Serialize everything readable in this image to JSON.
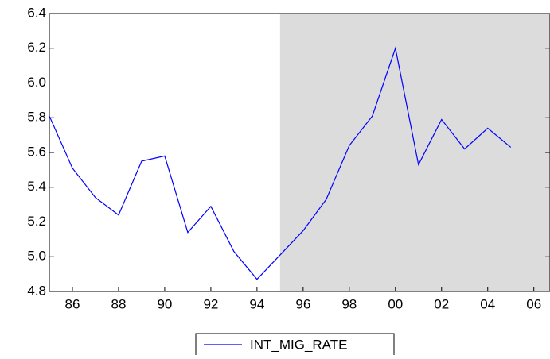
{
  "chart_data": {
    "type": "line",
    "x": [
      1985,
      1986,
      1987,
      1988,
      1989,
      1990,
      1991,
      1992,
      1993,
      1994,
      1995,
      1996,
      1997,
      1998,
      1999,
      2000,
      2001,
      2002,
      2003,
      2004,
      2005
    ],
    "series": [
      {
        "name": "INT_MIG_RATE",
        "color": "#0000ff",
        "values": [
          5.81,
          5.51,
          5.34,
          5.24,
          5.55,
          5.58,
          5.14,
          5.29,
          5.03,
          4.87,
          5.01,
          5.15,
          5.33,
          5.64,
          5.81,
          6.2,
          5.53,
          5.79,
          5.62,
          5.74,
          5.63
        ]
      }
    ],
    "xlim": [
      1985,
      2006.7
    ],
    "xticks": [
      {
        "value": 1986,
        "label": "86"
      },
      {
        "value": 1988,
        "label": "88"
      },
      {
        "value": 1990,
        "label": "90"
      },
      {
        "value": 1992,
        "label": "92"
      },
      {
        "value": 1994,
        "label": "94"
      },
      {
        "value": 1996,
        "label": "96"
      },
      {
        "value": 1998,
        "label": "98"
      },
      {
        "value": 2000,
        "label": "00"
      },
      {
        "value": 2002,
        "label": "02"
      },
      {
        "value": 2004,
        "label": "04"
      },
      {
        "value": 2006,
        "label": "06"
      }
    ],
    "ylim": [
      4.8,
      6.4
    ],
    "yticks": [
      4.8,
      {
        "value": 5,
        "label": "5.0"
      },
      5.2,
      5.4,
      5.6,
      5.8,
      {
        "value": 6,
        "label": "6.0"
      },
      6.2,
      6.4
    ],
    "shade_start": 1995,
    "shade_color": "#dcdcdc"
  }
}
